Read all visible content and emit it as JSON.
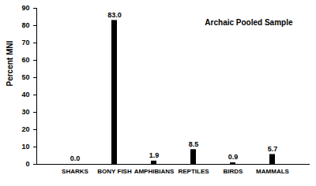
{
  "chart_data": {
    "type": "bar",
    "annotation": "Archaic Pooled Sample",
    "y_label": "Percent MNI",
    "categories": [
      "SHARKS",
      "BONY FISH",
      "AMPHIBIANS",
      "REPTILES",
      "BIRDS",
      "MAMMALS"
    ],
    "values": [
      0.0,
      83.0,
      1.9,
      8.5,
      0.9,
      5.7
    ],
    "value_labels": [
      "0.0",
      "83.0",
      "1.9",
      "8.5",
      "0.9",
      "5.7"
    ],
    "data_labels": true,
    "color": "#000000",
    "ylim": [
      0,
      90
    ],
    "yticks": [
      0,
      10,
      20,
      30,
      40,
      50,
      60,
      70,
      80,
      90
    ],
    "grid": false
  }
}
